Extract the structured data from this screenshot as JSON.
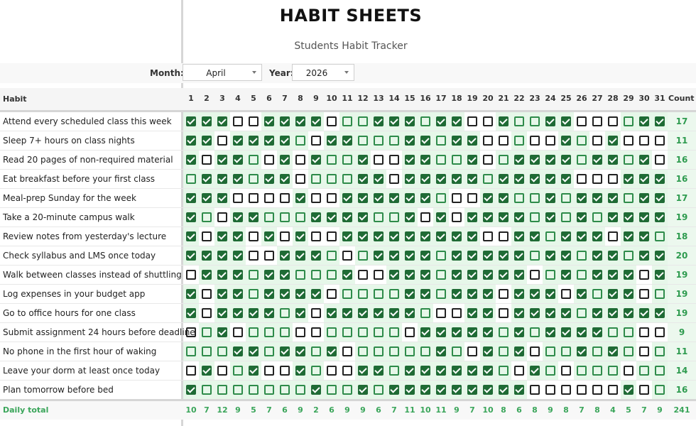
{
  "title": "HABIT SHEETS",
  "subtitle": "Students Habit Tracker",
  "controls": {
    "month_label": "Month:",
    "month_value": "April",
    "year_label": "Year:",
    "year_value": "2026"
  },
  "header": {
    "habit": "Habit",
    "count": "Count"
  },
  "days": [
    "1",
    "2",
    "3",
    "4",
    "5",
    "6",
    "7",
    "8",
    "9",
    "10",
    "11",
    "12",
    "13",
    "14",
    "15",
    "16",
    "17",
    "18",
    "19",
    "20",
    "21",
    "22",
    "23",
    "24",
    "25",
    "26",
    "27",
    "28",
    "29",
    "30",
    "31"
  ],
  "colors": {
    "done_fill": "#1f6b35",
    "open_green": "#2e8b4a",
    "open_black": "#222222",
    "cell_bg": "#e6f7e9",
    "count_text": "#2e9b4f"
  },
  "legend_note": "grid codes: d=checked, g=empty green box, b=empty black box",
  "habits": [
    {
      "name": "Attend every scheduled class this week",
      "count": "17",
      "cells": "dddbbddddbggdddgddbbdggddbbbgddgd"
    },
    {
      "name": "Sleep 7+ hours on class nights",
      "count": "11",
      "cells": "ddbddddgbddgggddgddbbgbbdgbdbbbdd"
    },
    {
      "name": "Read 20 pages of non-required material",
      "count": "16",
      "cells": "dbddgbdbdggdbbddggdbgddddgddgdbgd"
    },
    {
      "name": "Eat breakfast before your first class",
      "count": "16",
      "cells": "gdddgddbgggddbdddddgdddddbbbddddd"
    },
    {
      "name": "Meal-prep Sunday for the week",
      "count": "17",
      "cells": "dddbbbbdbbddddddgbbddggdgdddgddddd"
    },
    {
      "name": "Take a 20-minute campus walk",
      "count": "19",
      "cells": "dgbddgggddddggdbdbddddgdgdgddddg"
    },
    {
      "name": "Review notes from yesterday's lecture",
      "count": "18",
      "cells": "dbddbdbdbbdddddddddbbddgdddbddgddd"
    },
    {
      "name": "Check syllabus and LMS once today",
      "count": "20",
      "cells": "ddddbbdddgbgddddgdddddgddgddgddbgg"
    },
    {
      "name": "Walk between classes instead of shuttling",
      "count": "19",
      "cells": "bdddgddgggdbbdddgdddddbgdgdddbdddd"
    },
    {
      "name": "Log expenses in your budget app",
      "count": "19",
      "cells": "dbddgddddbggggddgdddbdddbdgddbgddg"
    },
    {
      "name": "Go to office hours for one class",
      "count": "19",
      "cells": "dbddddgdbddddddgbbddbddddgddddddd"
    },
    {
      "name": "Submit assignment 24 hours before deadline",
      "count": "9",
      "cells": "bgdbgggbbgggggbdddddgdgddddggbbgg"
    },
    {
      "name": "No phone in the first hour of waking",
      "count": "11",
      "cells": "gggddgddgdbgggggdgbdgdbggdgdgbgg"
    },
    {
      "name": "Leave your dorm at least once today",
      "count": "14",
      "cells": "bdbgdbbdgbbddgddddddgbdgbgggbggg"
    },
    {
      "name": "Plan tomorrow before bed",
      "count": "16",
      "cells": "dgggggggdggdgdddddddddbbbbbbdbgd"
    }
  ],
  "daily_total_label": "Daily total",
  "daily_totals": [
    "10",
    "7",
    "12",
    "9",
    "5",
    "7",
    "6",
    "9",
    "2",
    "6",
    "9",
    "9",
    "6",
    "7",
    "11",
    "10",
    "11",
    "9",
    "7",
    "10",
    "8",
    "6",
    "8",
    "9",
    "8",
    "7",
    "8",
    "4",
    "5",
    "7",
    "9"
  ],
  "grand_total": "241"
}
